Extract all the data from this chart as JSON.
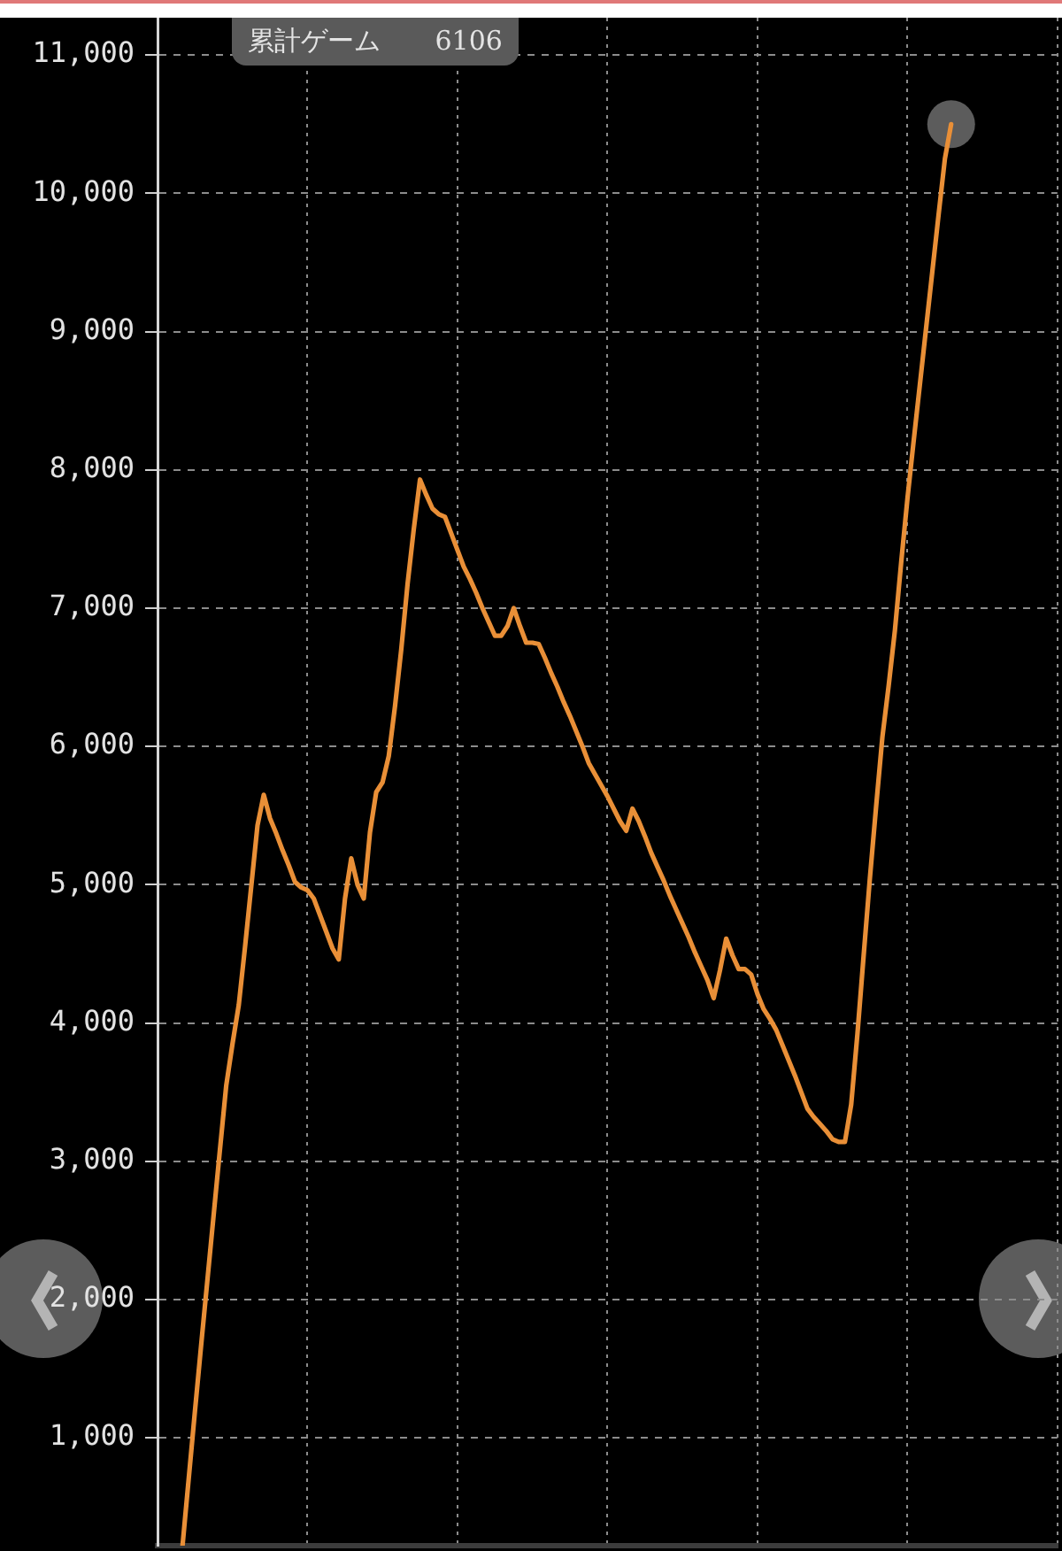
{
  "chart_data": {
    "type": "line",
    "categories": [
      null,
      null,
      null,
      null,
      null,
      null,
      null,
      null,
      null,
      null,
      null,
      null,
      null,
      null,
      null,
      null,
      null,
      null,
      null,
      null,
      null,
      null,
      null,
      null,
      null,
      null,
      null,
      null,
      null,
      null,
      null,
      null,
      null,
      null,
      null,
      null,
      null,
      null,
      null,
      null,
      null,
      null,
      null,
      null,
      null,
      null,
      null,
      null,
      null,
      null,
      null,
      null,
      null,
      null,
      null,
      null,
      null,
      null,
      null,
      null,
      null,
      null,
      null,
      null,
      null,
      null,
      null,
      null,
      null,
      null,
      null,
      null,
      null,
      null,
      null,
      null,
      null,
      null,
      null,
      null,
      null,
      null,
      null,
      null,
      null,
      null,
      null,
      null,
      null,
      null,
      null,
      null,
      null,
      null,
      null,
      null,
      null,
      null,
      null,
      null,
      null,
      null,
      null,
      null,
      null,
      null,
      null,
      null,
      null,
      null,
      null,
      null,
      null,
      null,
      null,
      null,
      null,
      null,
      null,
      null,
      null,
      null,
      null,
      null,
      null,
      null,
      null,
      null,
      null,
      null,
      null,
      null,
      null,
      null,
      null,
      null,
      null,
      null,
      null,
      null,
      null,
      null,
      null,
      null,
      null
    ],
    "series": [
      {
        "color": "#e98f37",
        "values": [
          null,
          null,
          null,
          null,
          220,
          710,
          1200,
          1680,
          2150,
          2620,
          3090,
          3550,
          3850,
          4130,
          4550,
          4990,
          5430,
          5650,
          5480,
          5370,
          5250,
          5140,
          5020,
          4980,
          4960,
          4900,
          4780,
          4660,
          4540,
          4460,
          4900,
          5190,
          5000,
          4900,
          5380,
          5670,
          5740,
          5930,
          6290,
          6700,
          7170,
          7570,
          7930,
          7820,
          7720,
          7680,
          7660,
          7540,
          7420,
          7300,
          7210,
          7110,
          7000,
          6900,
          6800,
          6800,
          6870,
          7000,
          6870,
          6750,
          6750,
          6740,
          6640,
          6530,
          6430,
          6320,
          6220,
          6110,
          6000,
          5880,
          5800,
          5720,
          5640,
          5550,
          5460,
          5390,
          5550,
          5460,
          5350,
          5230,
          5130,
          5030,
          4920,
          4820,
          4720,
          4620,
          4510,
          4410,
          4310,
          4180,
          4380,
          4610,
          4490,
          4390,
          4390,
          4350,
          4210,
          4100,
          4030,
          3950,
          3840,
          3730,
          3620,
          3500,
          3380,
          3320,
          3270,
          3220,
          3160,
          3140,
          3140,
          3410,
          3920,
          4490,
          5050,
          5570,
          6070,
          6440,
          6840,
          7330,
          7790,
          8210,
          8620,
          9030,
          9440,
          9850,
          10250,
          10500,
          null,
          null,
          null,
          null,
          null,
          null,
          null,
          null,
          null,
          null,
          null,
          null,
          null,
          null,
          null,
          null,
          null
        ]
      },
      {
        "type": "scatter",
        "color": "#5c5c5c",
        "marker": "circle",
        "values": [
          null,
          null,
          null,
          null,
          null,
          null,
          null,
          null,
          null,
          null,
          null,
          null,
          null,
          null,
          null,
          null,
          null,
          null,
          null,
          null,
          null,
          null,
          null,
          null,
          null,
          null,
          null,
          null,
          null,
          null,
          null,
          null,
          null,
          null,
          null,
          null,
          null,
          null,
          null,
          null,
          null,
          null,
          null,
          null,
          null,
          null,
          null,
          null,
          null,
          null,
          null,
          null,
          null,
          null,
          null,
          null,
          null,
          null,
          null,
          null,
          null,
          null,
          null,
          null,
          null,
          null,
          null,
          null,
          null,
          null,
          null,
          null,
          null,
          null,
          null,
          null,
          null,
          null,
          null,
          null,
          null,
          null,
          null,
          null,
          null,
          null,
          null,
          null,
          null,
          null,
          null,
          null,
          null,
          null,
          null,
          null,
          null,
          null,
          null,
          null,
          null,
          null,
          null,
          null,
          null,
          null,
          null,
          null,
          null,
          null,
          null,
          null,
          null,
          null,
          null,
          null,
          null,
          null,
          null,
          null,
          null,
          null,
          null,
          null,
          null,
          null,
          null,
          10500,
          null,
          null,
          null,
          null,
          null,
          null,
          null,
          null,
          null,
          null,
          null,
          null,
          null,
          null,
          null,
          null,
          null
        ]
      }
    ],
    "ylim": [
      220,
      11270
    ],
    "yticks": [
      {
        "value": 1000,
        "label": "1,000"
      },
      {
        "value": 2000,
        "label": "2,000"
      },
      {
        "value": 3000,
        "label": "3,000"
      },
      {
        "value": 4000,
        "label": "4,000"
      },
      {
        "value": 5000,
        "label": "5,000"
      },
      {
        "value": 6000,
        "label": "6,000"
      },
      {
        "value": 7000,
        "label": "7,000"
      },
      {
        "value": 8000,
        "label": "8,000"
      },
      {
        "value": 9000,
        "label": "9,000"
      },
      {
        "value": 10000,
        "label": "10,000"
      },
      {
        "value": 11000,
        "label": "11,000"
      }
    ],
    "grid": true,
    "tick_labels": "y",
    "annotations": [
      "累計ゲーム 6106"
    ]
  }
}
